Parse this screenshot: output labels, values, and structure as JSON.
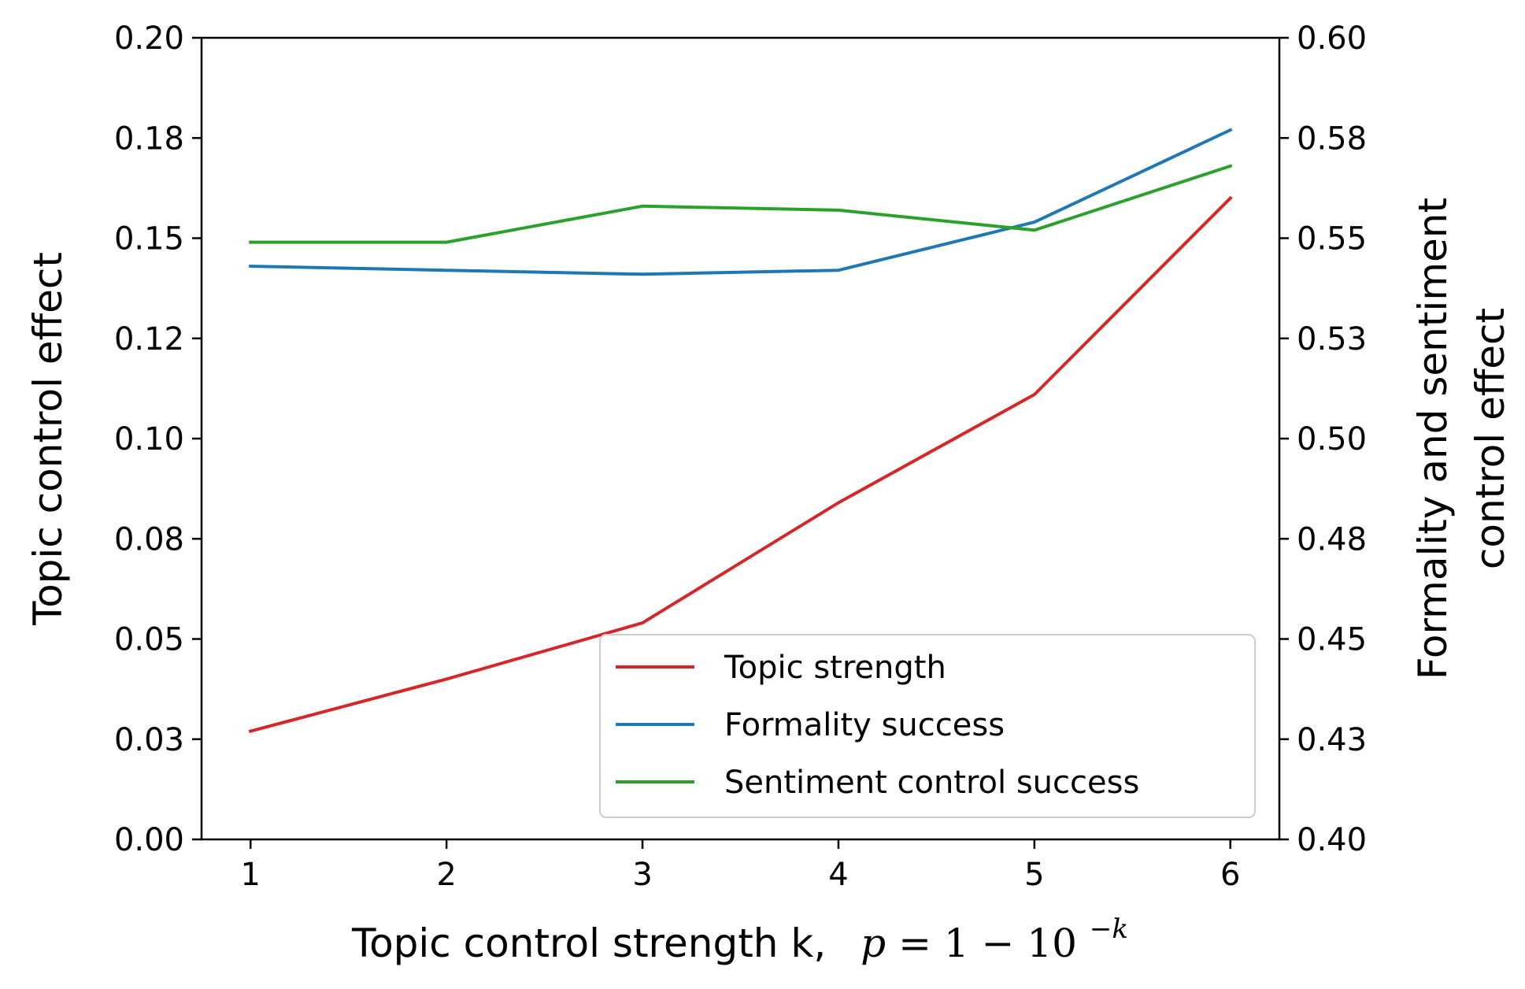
{
  "chart_data": {
    "type": "line",
    "x": [
      1,
      2,
      3,
      4,
      5,
      6
    ],
    "xticks": [
      "1",
      "2",
      "3",
      "4",
      "5",
      "6"
    ],
    "xlim": [
      0.75,
      6.25
    ],
    "xlabel": {
      "text": "Topic control strength k,",
      "math_p": "p",
      "math_eq": " = 1 − 10",
      "math_sup": "−k"
    },
    "ylabel_left": "Topic control effect",
    "ylabel_right_line1": "Formality and sentiment",
    "ylabel_right_line2": "control effect",
    "ylim_left": [
      0.0,
      0.2
    ],
    "ylim_right": [
      0.4,
      0.6
    ],
    "yticks_left": [
      {
        "value": 0.0,
        "label": "0.00"
      },
      {
        "value": 0.025,
        "label": "0.03"
      },
      {
        "value": 0.05,
        "label": "0.05"
      },
      {
        "value": 0.075,
        "label": "0.08"
      },
      {
        "value": 0.1,
        "label": "0.10"
      },
      {
        "value": 0.125,
        "label": "0.12"
      },
      {
        "value": 0.15,
        "label": "0.15"
      },
      {
        "value": 0.175,
        "label": "0.18"
      },
      {
        "value": 0.2,
        "label": "0.20"
      }
    ],
    "yticks_right": [
      {
        "value": 0.4,
        "label": "0.40"
      },
      {
        "value": 0.425,
        "label": "0.43"
      },
      {
        "value": 0.45,
        "label": "0.45"
      },
      {
        "value": 0.475,
        "label": "0.48"
      },
      {
        "value": 0.5,
        "label": "0.50"
      },
      {
        "value": 0.525,
        "label": "0.53"
      },
      {
        "value": 0.55,
        "label": "0.55"
      },
      {
        "value": 0.575,
        "label": "0.58"
      },
      {
        "value": 0.6,
        "label": "0.60"
      }
    ],
    "series": [
      {
        "name": "Topic strength",
        "axis": "left",
        "color": "#d62728",
        "values": [
          0.027,
          0.04,
          0.054,
          0.084,
          0.111,
          0.16
        ]
      },
      {
        "name": "Formality success",
        "axis": "right",
        "color": "#1f77b4",
        "values": [
          0.543,
          0.542,
          0.541,
          0.542,
          0.554,
          0.577
        ]
      },
      {
        "name": "Sentiment control success",
        "axis": "right",
        "color": "#2ca02c",
        "values": [
          0.549,
          0.549,
          0.558,
          0.557,
          0.552,
          0.568
        ]
      }
    ],
    "legend_position": "lower-right"
  }
}
